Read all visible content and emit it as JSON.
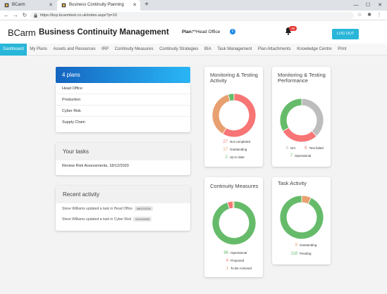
{
  "browser": {
    "tabs": [
      {
        "label": "BCarm"
      },
      {
        "label": "Business Continuity Planning"
      }
    ],
    "url": "https://bcp.bcarmtest.co.uk/index.aspx?p=10"
  },
  "header": {
    "logo": "BCarm",
    "title": "Business Continuity Management",
    "plan_label": "Plan:",
    "plan_value": "**Head Office",
    "notification_count": "18",
    "logout_label": "LOG OUT"
  },
  "nav": [
    "Dashboard",
    "My Plans",
    "Assets and Resources",
    "IRP",
    "Continuity Measures",
    "Continuity Strategies",
    "BIA",
    "Task Management",
    "Plan Attachments",
    "Knowledge Centre",
    "Print"
  ],
  "plans": {
    "title": "4 plans",
    "items": [
      "Head Office",
      "Production",
      "Cyber Risk",
      "Supply Chain"
    ]
  },
  "tasks": {
    "title": "Your tasks",
    "items": [
      "Review Risk Assessments, 18/12/2020"
    ]
  },
  "activity": {
    "title": "Recent activity",
    "items": [
      {
        "text": "Steve Williams updated a task in Head Office",
        "date": "08/12/2020"
      },
      {
        "text": "Steve Williams updated a task in Cyber Risk",
        "date": "02/10/2020"
      }
    ]
  },
  "colors": {
    "red": "#f77575",
    "orange": "#e8a070",
    "green": "#66bb6a",
    "grey": "#bdbdbd",
    "purple": "#9e8fc8",
    "accent": "#29b6d8"
  },
  "chart_data": [
    {
      "type": "pie",
      "title": "Monitoring & Testing Activity",
      "labels": [
        "Not completed",
        "Outstanding",
        "Up to date"
      ],
      "values": [
        27,
        17,
        2
      ],
      "colors": [
        "#f77575",
        "#e8a070",
        "#66bb6a"
      ]
    },
    {
      "type": "pie",
      "title": "Monitoring & Testing Performance",
      "labels": [
        "N/A",
        "Test failed",
        "Operational"
      ],
      "values": [
        8,
        6,
        7
      ],
      "colors": [
        "#bdbdbd",
        "#f77575",
        "#66bb6a"
      ]
    },
    {
      "type": "pie",
      "title": "Continuity Measures",
      "labels": [
        "Operational",
        "Proposed",
        "To Be Actioned"
      ],
      "values": [
        96,
        4,
        1
      ],
      "colors": [
        "#66bb6a",
        "#f77575",
        "#e8a070"
      ]
    },
    {
      "type": "pie",
      "title": "Task Activity",
      "labels": [
        "Outstanding",
        "Pending"
      ],
      "values": [
        9,
        118
      ],
      "colors": [
        "#e8a070",
        "#66bb6a"
      ]
    }
  ]
}
